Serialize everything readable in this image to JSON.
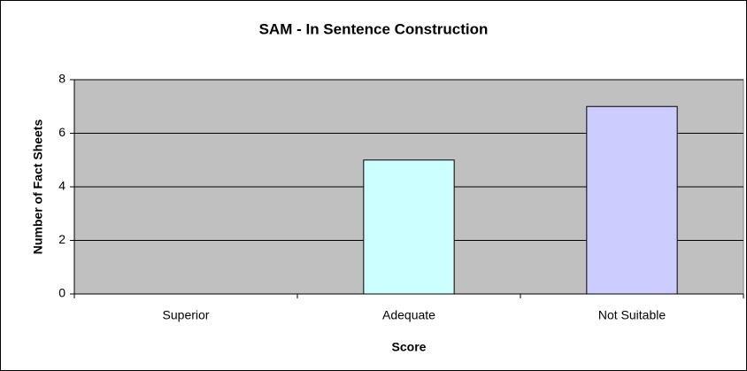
{
  "chart_data": {
    "type": "bar",
    "title": "SAM - In Sentence Construction",
    "x_label": "Score",
    "y_label": "Number of Fact Sheets",
    "categories": [
      "Superior",
      "Adequate",
      "Not Suitable"
    ],
    "values": [
      0,
      5,
      7
    ],
    "colors": [
      "#ccffff",
      "#ccffff",
      "#ccccff"
    ],
    "ylim": [
      0,
      8
    ],
    "yticks": [
      0,
      2,
      4,
      6,
      8
    ],
    "grid": true
  }
}
